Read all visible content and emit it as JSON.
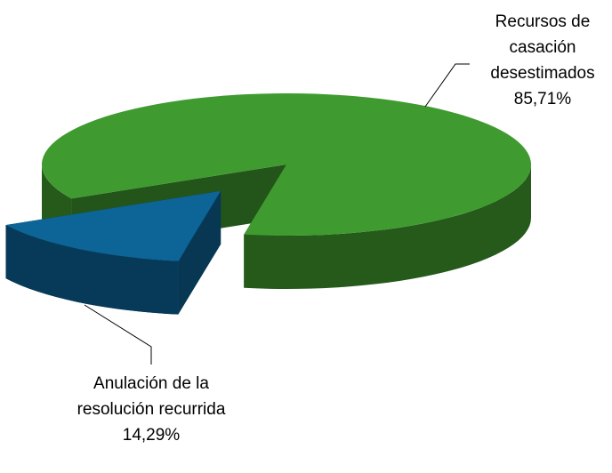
{
  "chart_data": {
    "type": "pie",
    "categories": [
      "Anulación de la resolución recurrida",
      "Recursos de casación desestimados"
    ],
    "values": [
      14.29,
      85.71
    ],
    "value_labels": [
      "14,29%",
      "85,71%"
    ],
    "colors": [
      "#0c6497",
      "#3f9b2f"
    ]
  }
}
